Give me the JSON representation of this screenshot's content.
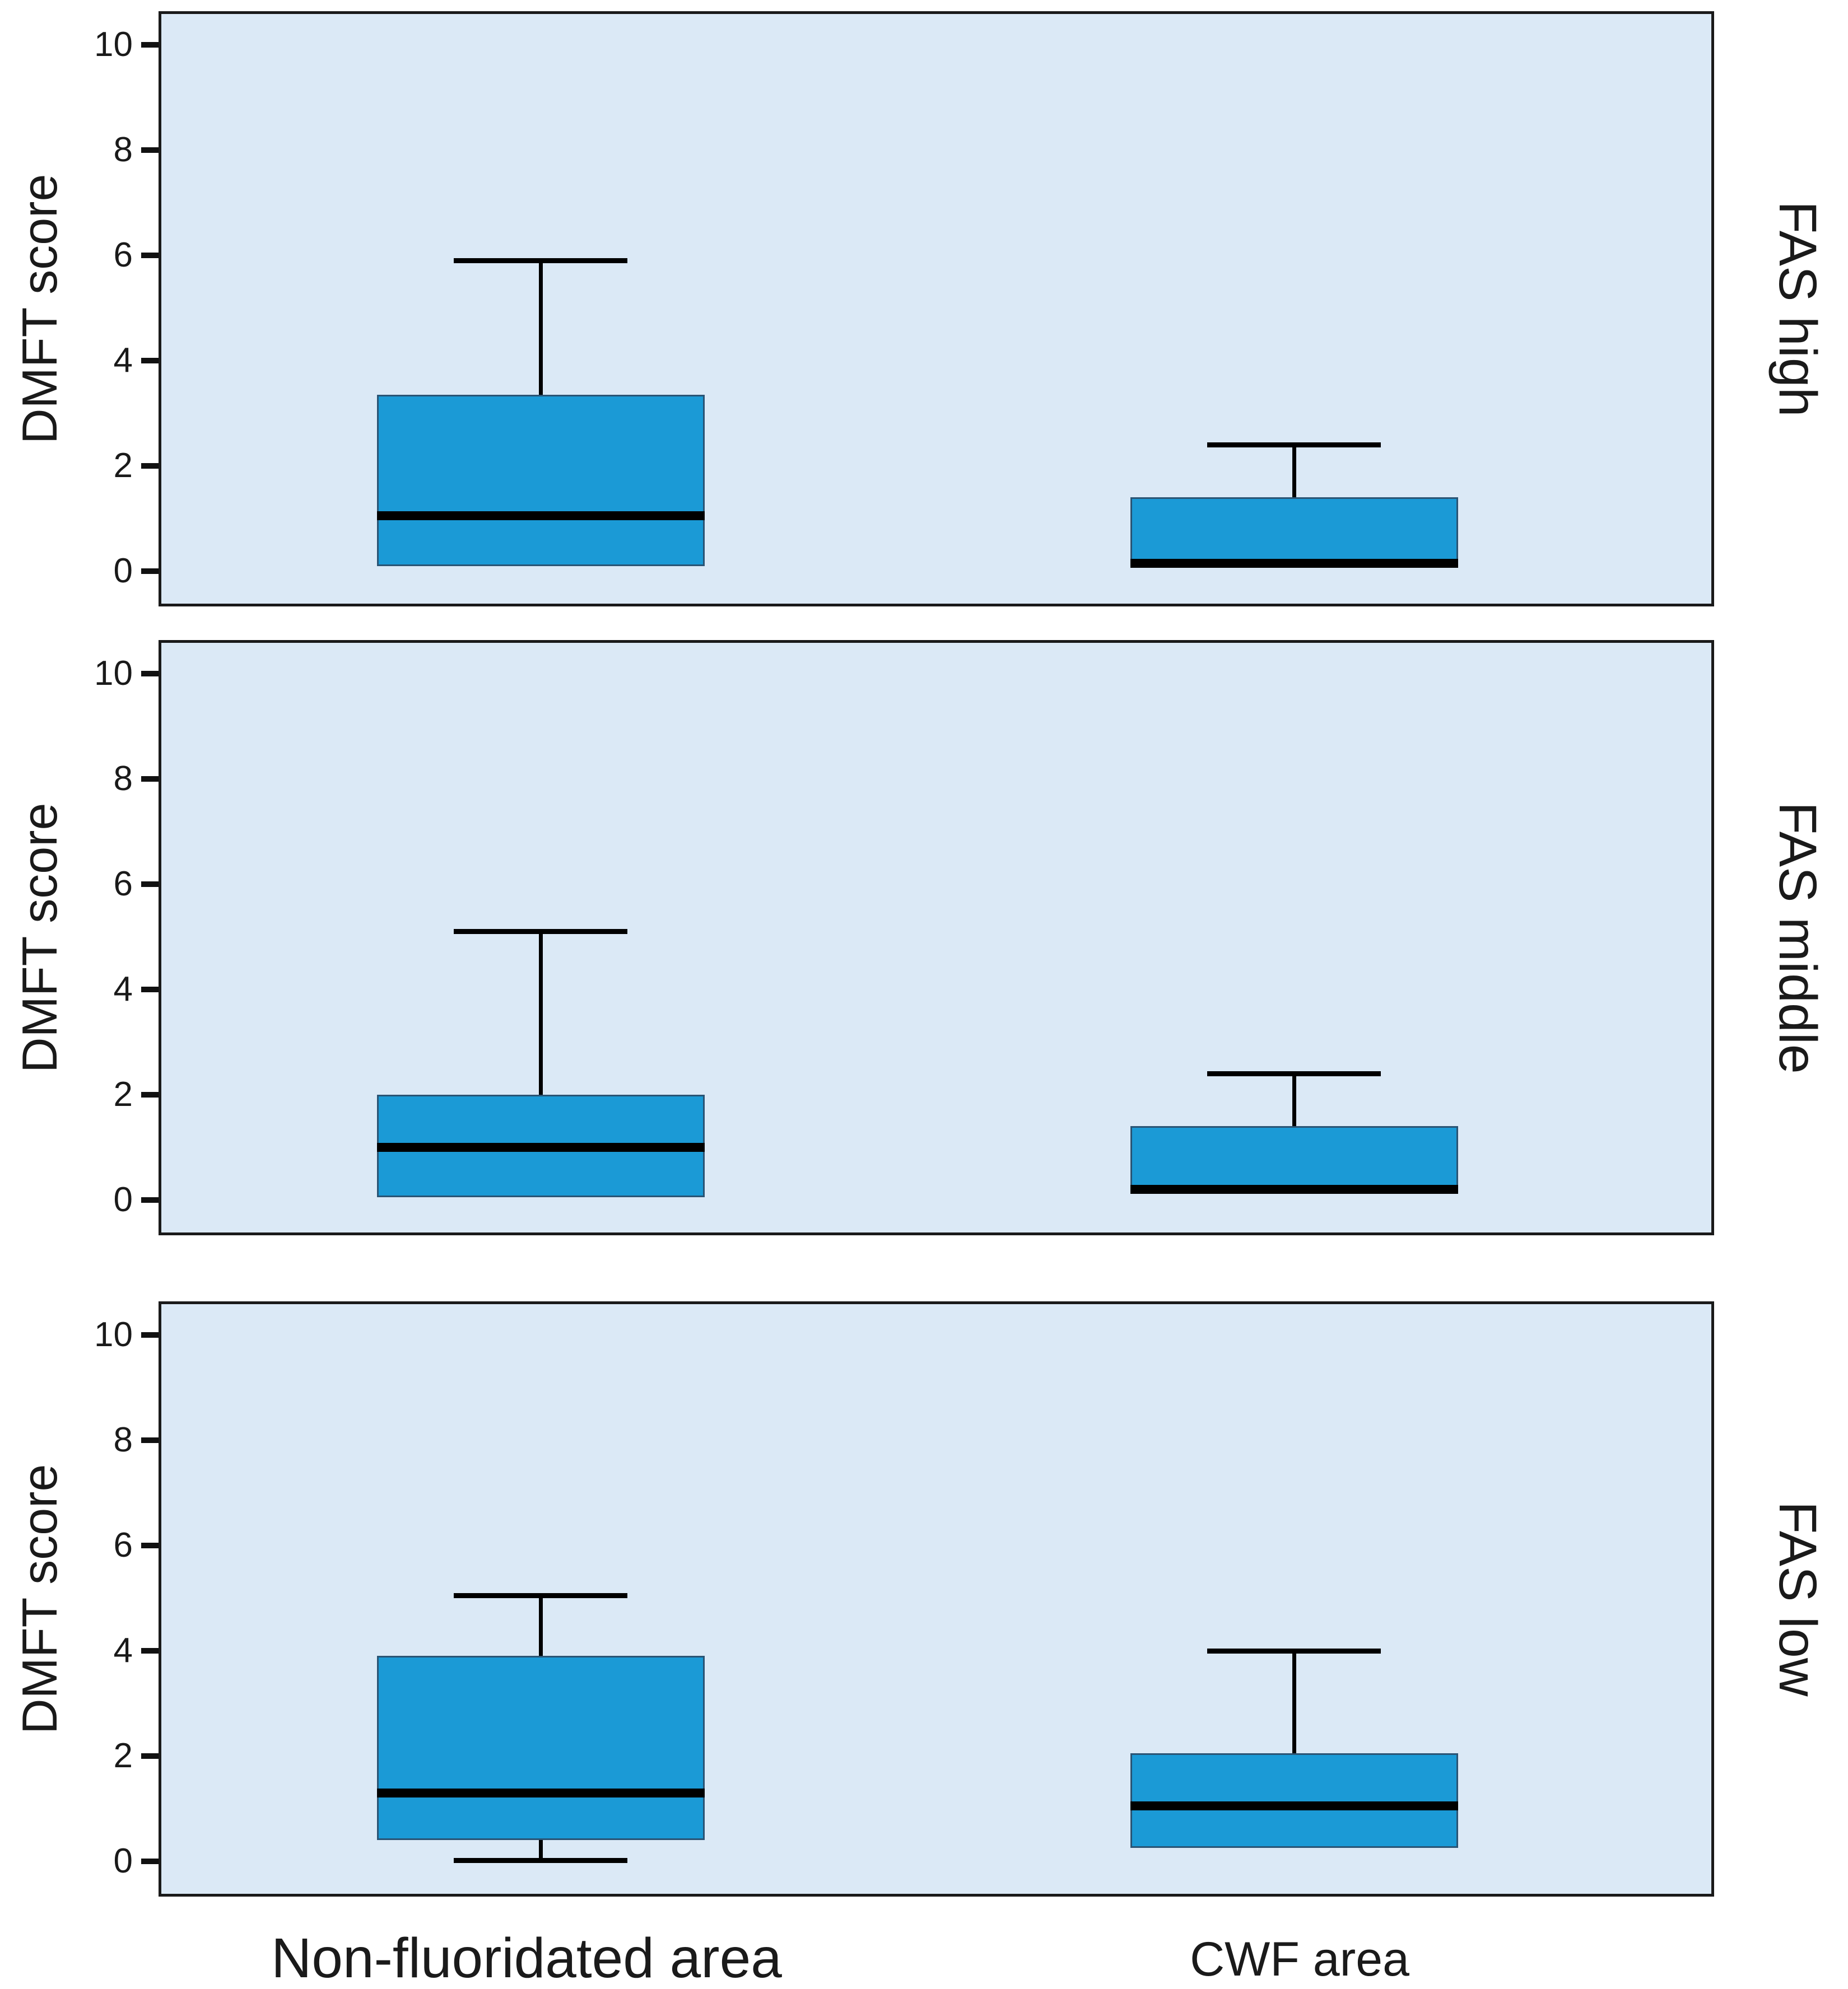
{
  "chart_data": {
    "type": "box",
    "title": "",
    "xlabel": "",
    "ylabel": "DMFT score",
    "yticks": [
      0,
      2,
      4,
      6,
      8,
      10
    ],
    "ylim": [
      -0.7,
      10.7
    ],
    "grid": false,
    "legend": "none",
    "categories": [
      "Non-fluoridated area",
      "CWF area"
    ],
    "facet_labels": [
      "FAS high",
      "FAS middle",
      "FAS low"
    ],
    "panels": [
      {
        "label": "FAS high",
        "boxes": [
          {
            "category": "Non-fluoridated area",
            "whisker_low": null,
            "q1": 0.1,
            "median": 1.05,
            "q3": 3.35,
            "whisker_high": 5.9
          },
          {
            "category": "CWF area",
            "whisker_low": null,
            "q1": 0.1,
            "median": 0.15,
            "q3": 1.4,
            "whisker_high": 2.4
          }
        ]
      },
      {
        "label": "FAS middle",
        "boxes": [
          {
            "category": "Non-fluoridated area",
            "whisker_low": null,
            "q1": 0.05,
            "median": 1.0,
            "q3": 2.0,
            "whisker_high": 5.1
          },
          {
            "category": "CWF area",
            "whisker_low": null,
            "q1": 0.15,
            "median": 0.2,
            "q3": 1.4,
            "whisker_high": 2.4
          }
        ]
      },
      {
        "label": "FAS low",
        "boxes": [
          {
            "category": "Non-fluoridated area",
            "whisker_low": 0.02,
            "q1": 0.4,
            "median": 1.3,
            "q3": 3.9,
            "whisker_high": 5.05
          },
          {
            "category": "CWF area",
            "whisker_low": null,
            "q1": 0.25,
            "median": 1.05,
            "q3": 2.05,
            "whisker_high": 4.0
          }
        ]
      }
    ],
    "colors": {
      "box_fill": "#1b9ad6",
      "box_border": "#2a5474",
      "panel_bg": "#dbe9f6",
      "panel_border": "#1a1a1a",
      "line": "#000000",
      "text": "#1a1a1a"
    }
  }
}
